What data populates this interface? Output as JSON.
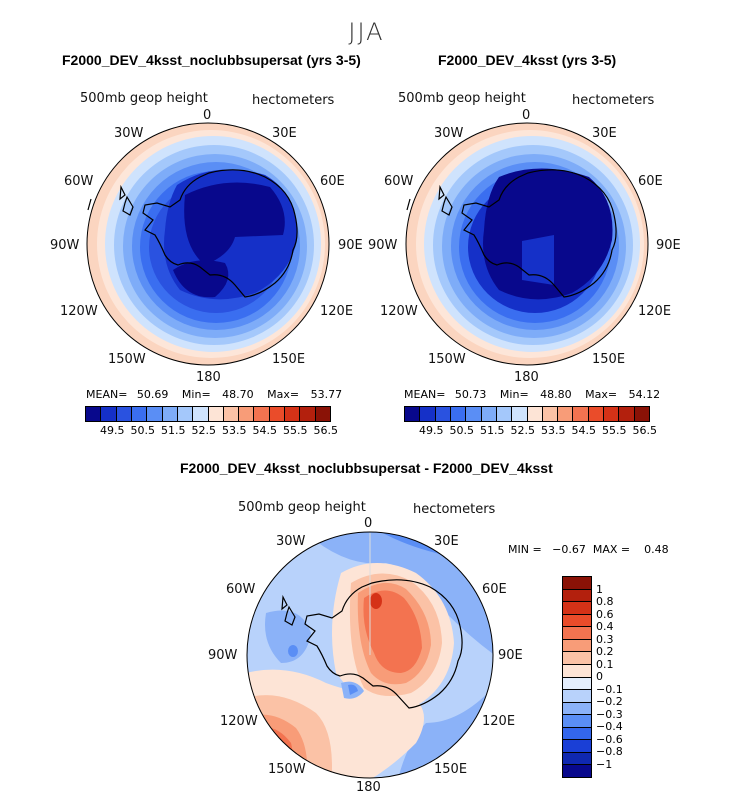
{
  "season": "JJA",
  "panels": [
    {
      "title": "F2000_DEV_4ksst_noclubbsupersat (yrs 3-5)",
      "variable": "500mb geop height",
      "units": "hectometers",
      "stats": {
        "mean_label": "MEAN=",
        "mean": "50.69",
        "min_label": "Min=",
        "min": "48.70",
        "max_label": "Max=",
        "max": "53.77"
      }
    },
    {
      "title": "F2000_DEV_4ksst (yrs 3-5)",
      "variable": "500mb geop height",
      "units": "hectometers",
      "stats": {
        "mean_label": "MEAN=",
        "mean": "50.73",
        "min_label": "Min=",
        "min": "48.80",
        "max_label": "Max=",
        "max": "54.12"
      }
    }
  ],
  "diff_panel": {
    "title": "F2000_DEV_4ksst_noclubbsupersat - F2000_DEV_4ksst",
    "variable": "500mb geop height",
    "units": "hectometers",
    "minmax_text": "MIN =   −0.67  MAX =    0.48"
  },
  "lon_labels": {
    "l0": "0",
    "l30e": "30E",
    "l60e": "60E",
    "l90e": "90E",
    "l120e": "120E",
    "l150e": "150E",
    "l180": "180",
    "l150w": "150W",
    "l120w": "120W",
    "l90w": "90W",
    "l60w": "60W",
    "l30w": "30W"
  },
  "abs_colorbar": {
    "ticks": [
      "49.5",
      "50.5",
      "51.5",
      "52.5",
      "53.5",
      "54.5",
      "55.5",
      "56.5"
    ],
    "colors": [
      "#08088c",
      "#1530c8",
      "#2a52e0",
      "#3a6ef0",
      "#5a8ef5",
      "#7eacf8",
      "#a4c8fb",
      "#cfe3fd",
      "#fde4d6",
      "#fbc2a6",
      "#f89c78",
      "#f37350",
      "#ea4c2a",
      "#d53217",
      "#b3200d",
      "#8a1206"
    ]
  },
  "diff_colorbar": {
    "ticks": [
      "1",
      "0.8",
      "0.6",
      "0.4",
      "0.3",
      "0.2",
      "0.1",
      "0",
      "−0.1",
      "−0.2",
      "−0.3",
      "−0.4",
      "−0.6",
      "−0.8",
      "−1"
    ],
    "colors": [
      "#8a1206",
      "#b3200d",
      "#d53217",
      "#ea4c2a",
      "#f37350",
      "#f89c78",
      "#fbc2a6",
      "#fde4d6",
      "#e4eefd",
      "#b8d2fb",
      "#8bb2f8",
      "#5a8ef5",
      "#3366ec",
      "#1a3fd6",
      "#0f28b0",
      "#08088c"
    ]
  },
  "colors": {
    "map_bg": "#ffffff",
    "coast": "#000000"
  }
}
